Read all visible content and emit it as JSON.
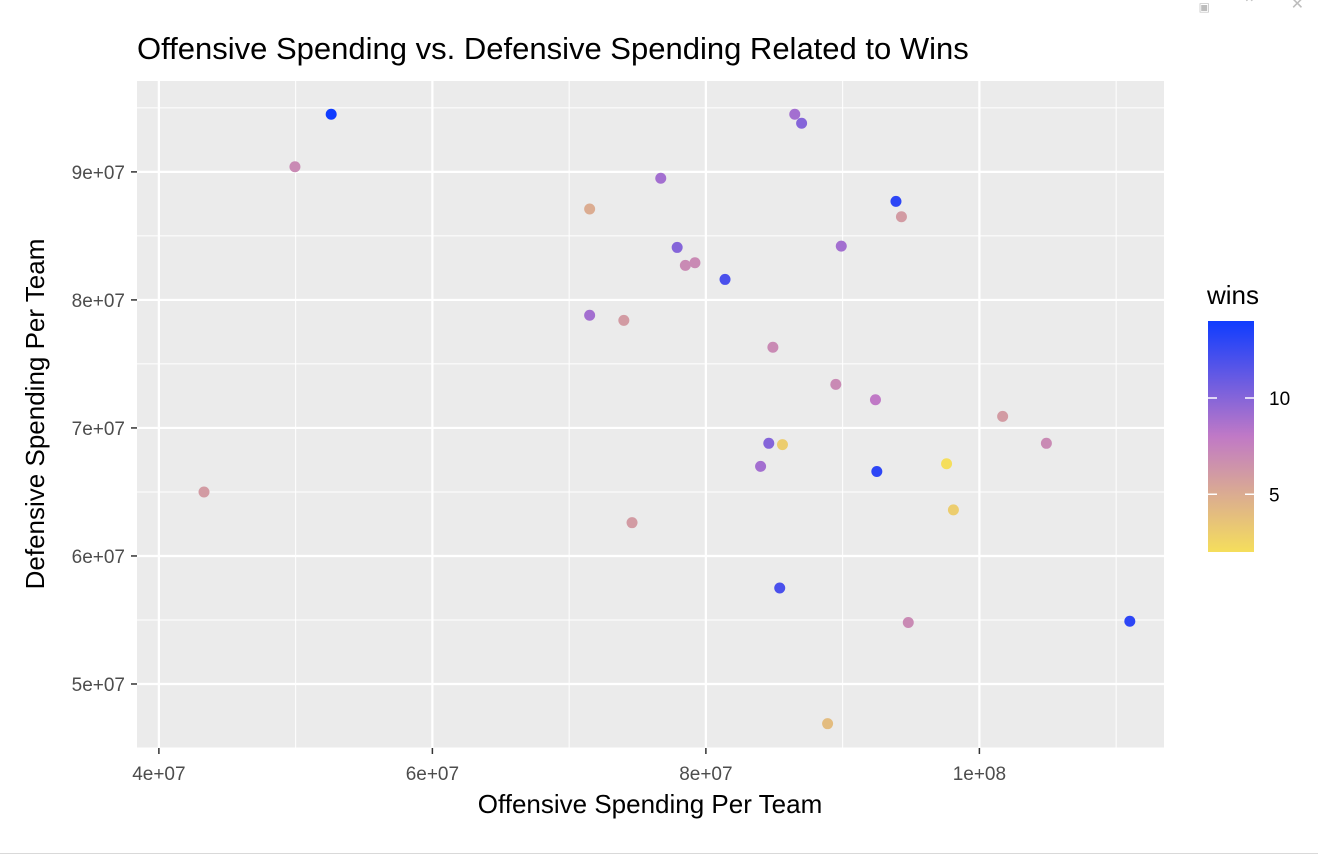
{
  "window": {
    "controls": [
      "restore",
      "collapse",
      "close"
    ]
  },
  "chart_data": {
    "type": "scatter",
    "title": "Offensive Spending vs. Defensive Spending Related to Wins",
    "xlabel": "Offensive Spending Per Team",
    "ylabel": "Defensive Spending Per Team",
    "xlim": [
      38400000,
      113500000
    ],
    "ylim": [
      45000000,
      97100000
    ],
    "x_ticks": [
      40000000,
      60000000,
      80000000,
      100000000
    ],
    "x_tick_labels": [
      "4e+07",
      "6e+07",
      "8e+07",
      "1e+08"
    ],
    "y_ticks": [
      50000000,
      60000000,
      70000000,
      80000000,
      90000000
    ],
    "y_tick_labels": [
      "5e+07",
      "6e+07",
      "7e+07",
      "8e+07",
      "9e+07"
    ],
    "grid": true,
    "background": "#ebebeb",
    "legend": {
      "title": "wins",
      "placement": "right",
      "labels": [
        "10",
        "5"
      ],
      "label_values": [
        10,
        5
      ],
      "range": [
        2,
        14
      ],
      "colors": {
        "low": "#f5de5c",
        "mid": "#c079c6",
        "high": "#0f3cff"
      }
    },
    "points": [
      {
        "x": 43300000,
        "y": 65000000,
        "wins": 6
      },
      {
        "x": 49950000,
        "y": 90400000,
        "wins": 7
      },
      {
        "x": 52600000,
        "y": 94500000,
        "wins": 14
      },
      {
        "x": 71500000,
        "y": 87100000,
        "wins": 5
      },
      {
        "x": 71500000,
        "y": 78800000,
        "wins": 9
      },
      {
        "x": 74000000,
        "y": 78400000,
        "wins": 6
      },
      {
        "x": 74600000,
        "y": 62600000,
        "wins": 6
      },
      {
        "x": 76700000,
        "y": 89500000,
        "wins": 9
      },
      {
        "x": 77900000,
        "y": 84100000,
        "wins": 10
      },
      {
        "x": 78500000,
        "y": 82700000,
        "wins": 7
      },
      {
        "x": 79200000,
        "y": 82900000,
        "wins": 7
      },
      {
        "x": 81400000,
        "y": 81600000,
        "wins": 12
      },
      {
        "x": 84000000,
        "y": 67000000,
        "wins": 9
      },
      {
        "x": 84600000,
        "y": 68800000,
        "wins": 10
      },
      {
        "x": 84900000,
        "y": 76300000,
        "wins": 7
      },
      {
        "x": 85400000,
        "y": 57500000,
        "wins": 12
      },
      {
        "x": 85600000,
        "y": 68700000,
        "wins": 3
      },
      {
        "x": 86500000,
        "y": 94500000,
        "wins": 9
      },
      {
        "x": 87000000,
        "y": 93800000,
        "wins": 10
      },
      {
        "x": 88900000,
        "y": 46900000,
        "wins": 4
      },
      {
        "x": 89500000,
        "y": 73400000,
        "wins": 7
      },
      {
        "x": 89900000,
        "y": 84200000,
        "wins": 9
      },
      {
        "x": 92400000,
        "y": 72200000,
        "wins": 8
      },
      {
        "x": 92500000,
        "y": 66600000,
        "wins": 13
      },
      {
        "x": 93900000,
        "y": 87700000,
        "wins": 13
      },
      {
        "x": 94300000,
        "y": 86500000,
        "wins": 6
      },
      {
        "x": 94800000,
        "y": 54800000,
        "wins": 7
      },
      {
        "x": 97600000,
        "y": 67200000,
        "wins": 2
      },
      {
        "x": 98100000,
        "y": 63600000,
        "wins": 3
      },
      {
        "x": 101700000,
        "y": 70900000,
        "wins": 6
      },
      {
        "x": 104900000,
        "y": 68800000,
        "wins": 7
      },
      {
        "x": 111000000,
        "y": 54900000,
        "wins": 13
      }
    ]
  }
}
